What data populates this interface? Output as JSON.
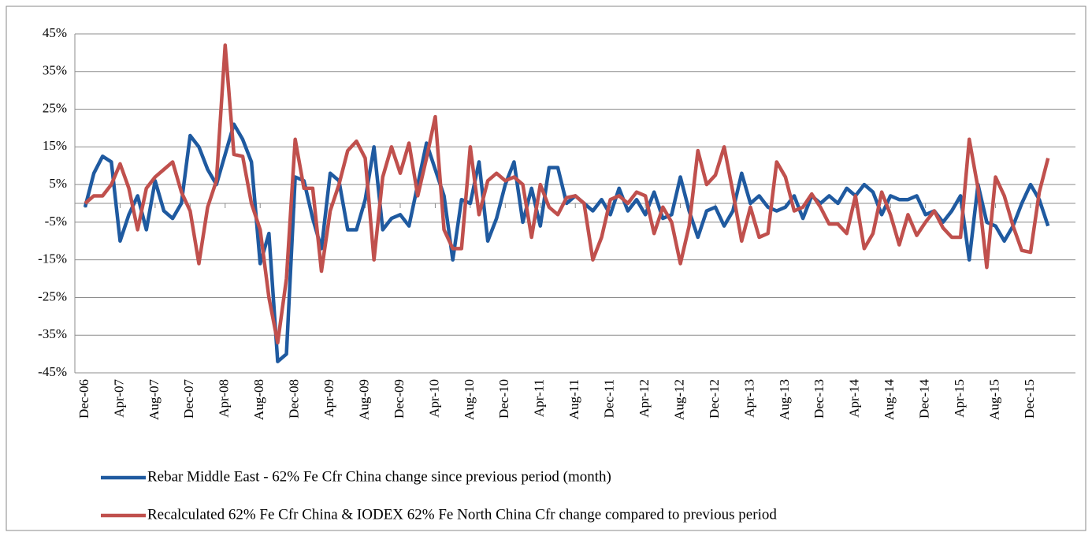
{
  "chart_data": {
    "type": "line",
    "categories": [
      "Dec-06",
      null,
      null,
      null,
      "Apr-07",
      null,
      null,
      null,
      "Aug-07",
      null,
      null,
      null,
      "Dec-07",
      null,
      null,
      null,
      "Apr-08",
      null,
      null,
      null,
      "Aug-08",
      null,
      null,
      null,
      "Dec-08",
      null,
      null,
      null,
      "Apr-09",
      null,
      null,
      null,
      "Aug-09",
      null,
      null,
      null,
      "Dec-09",
      null,
      null,
      null,
      "Apr-10",
      null,
      null,
      null,
      "Aug-10",
      null,
      null,
      null,
      "Dec-10",
      null,
      null,
      null,
      "Apr-11",
      null,
      null,
      null,
      "Aug-11",
      null,
      null,
      null,
      "Dec-11",
      null,
      null,
      null,
      "Apr-12",
      null,
      null,
      null,
      "Aug-12",
      null,
      null,
      null,
      "Dec-12",
      null,
      null,
      null,
      "Apr-13",
      null,
      null,
      null,
      "Aug-13",
      null,
      null,
      null,
      "Dec-13",
      null,
      null,
      null,
      "Apr-14",
      null,
      null,
      null,
      "Aug-14",
      null,
      null,
      null,
      "Dec-14",
      null,
      null,
      null,
      "Apr-15",
      null,
      null,
      null,
      "Aug-15",
      null,
      null,
      null,
      "Dec-15",
      null,
      null
    ],
    "series": [
      {
        "name": "Rebar Middle East - 62% Fe Cfr China change since previous period (month)",
        "color": "#1f5aa0",
        "values": [
          -1,
          8,
          12.5,
          11,
          -10,
          -3,
          2,
          -7,
          6,
          -2,
          -4,
          0,
          18,
          15,
          9,
          5,
          13,
          21,
          17,
          11,
          -16,
          -8,
          -42,
          -40,
          7,
          6,
          -4,
          -12,
          8,
          6,
          -7,
          -7,
          1,
          15,
          -7,
          -4,
          -3,
          -6,
          5,
          16,
          9,
          2,
          -15,
          1,
          0,
          11,
          -10,
          -4,
          5,
          11,
          -5,
          4,
          -6,
          9.5,
          9.5,
          0,
          2,
          0,
          -2,
          1,
          -3,
          4,
          -2,
          1,
          -3,
          3,
          -4,
          -3,
          7,
          -2,
          -9,
          -2,
          -1,
          -6,
          -2,
          8,
          0,
          2,
          -1,
          -2,
          -1,
          2,
          -4,
          2,
          0,
          2,
          0,
          4,
          2,
          5,
          3,
          -3,
          2,
          1,
          1,
          2,
          -3,
          -2,
          -5,
          -2,
          2,
          -15,
          5,
          -5,
          -6,
          -10,
          -6,
          0,
          5,
          1,
          -6
        ]
      },
      {
        "name": "Recalculated 62% Fe Cfr China & IODEX 62% Fe North China Cfr change compared to previous period",
        "color": "#c0504d",
        "values": [
          0,
          2,
          2,
          5,
          10.5,
          4,
          -7,
          4,
          7,
          9,
          11,
          3,
          -2,
          -16,
          -1,
          6,
          42,
          13,
          12.5,
          0,
          -7,
          -25,
          -37,
          -20,
          17,
          4,
          4,
          -18,
          -2,
          5,
          14,
          16.5,
          12,
          -15,
          7,
          15,
          8,
          16,
          2,
          12,
          23,
          -7,
          -12,
          -12,
          15,
          -3,
          6,
          8,
          6,
          7,
          5,
          -9,
          5,
          -1,
          -3,
          1.5,
          2,
          0,
          -15,
          -9,
          1,
          2,
          0,
          3,
          2,
          -8,
          -1,
          -5,
          -16,
          -6,
          14,
          5,
          7.5,
          15,
          3,
          -10,
          -1,
          -9,
          -8,
          11,
          7,
          -2,
          -1,
          2.5,
          -1,
          -5.5,
          -5.5,
          -8,
          2,
          -12,
          -8,
          3,
          -3,
          -11,
          -3,
          -8.5,
          -5,
          -2,
          -6.5,
          -9,
          -9,
          17,
          4,
          -17,
          7,
          2,
          -6,
          -12.5,
          -13,
          3,
          12
        ]
      }
    ],
    "ylim": [
      -45,
      45
    ],
    "yticks": [
      {
        "value": -45,
        "label": "-45%"
      },
      {
        "value": -35,
        "label": "-35%"
      },
      {
        "value": -25,
        "label": "-25%"
      },
      {
        "value": -15,
        "label": "-15%"
      },
      {
        "value": -5,
        "label": "-5%"
      },
      {
        "value": 5,
        "label": "5%"
      },
      {
        "value": 15,
        "label": "15%"
      },
      {
        "value": 25,
        "label": "25%"
      },
      {
        "value": 35,
        "label": "35%"
      },
      {
        "value": 45,
        "label": "45%"
      }
    ],
    "grid": true
  }
}
